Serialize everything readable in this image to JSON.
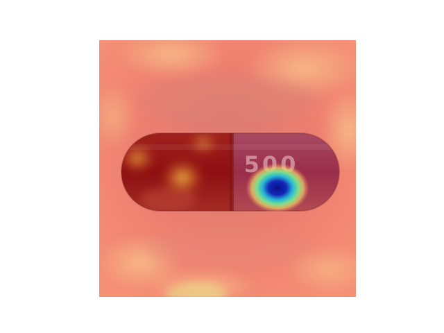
{
  "image": {
    "subject": "capsule",
    "capsule_imprint": "500",
    "overlay": "heatmap",
    "colors": {
      "background_warm": "#f07a6a",
      "background_hot": "#f6b27a",
      "capsule_left": "#8e0f12",
      "capsule_right": "#9a2d4a",
      "hotspot_yellow": "#f3c14a",
      "hotspot_blue": "#1427b8",
      "hotspot_cyan": "#27b6d6"
    }
  }
}
